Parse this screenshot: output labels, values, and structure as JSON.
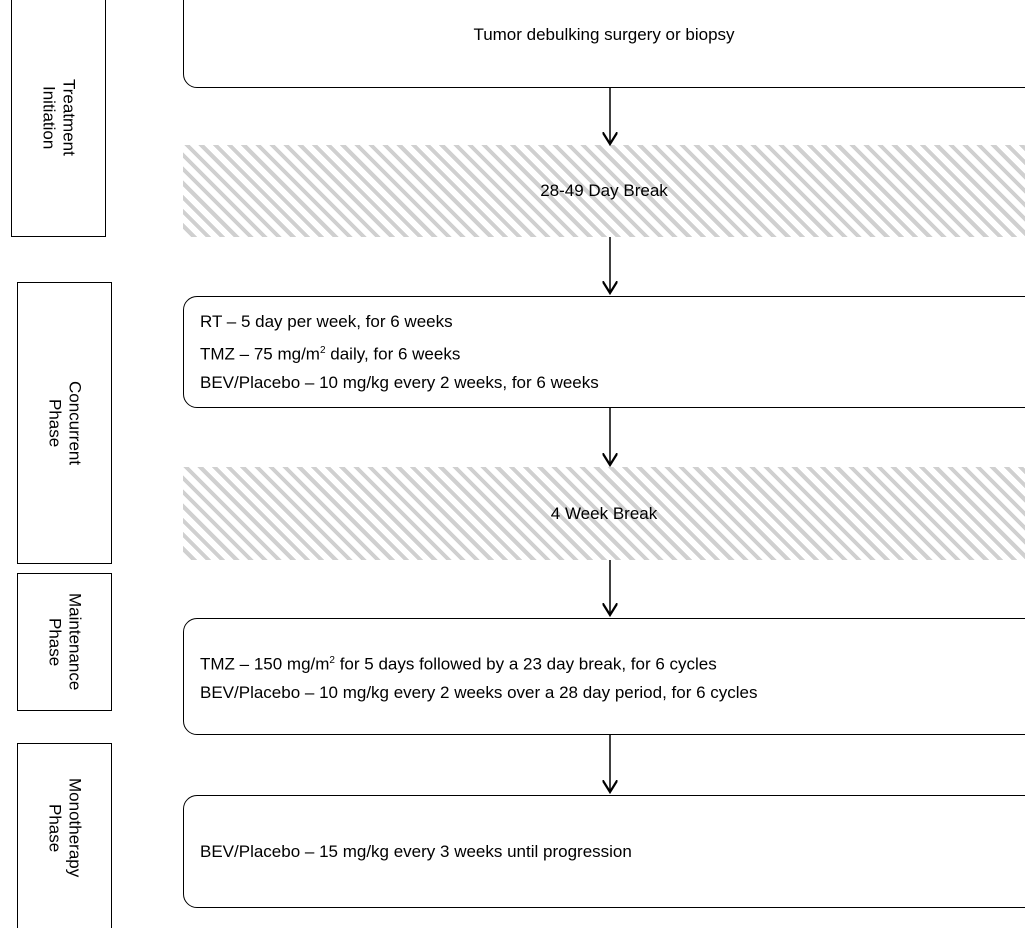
{
  "phases": [
    {
      "lines": [
        "Treatment",
        "Initiation"
      ]
    },
    {
      "lines": [
        "Concurrent",
        "Phase"
      ]
    },
    {
      "lines": [
        "Maintenance",
        "Phase"
      ]
    },
    {
      "lines": [
        "Monotherapy",
        "Phase"
      ]
    }
  ],
  "steps": {
    "surgery": "Tumor debulking surgery or biopsy",
    "break_1": "28-49 Day Break",
    "concurrent": [
      {
        "before": "RT – 5 day per week, for 6 weeks"
      },
      {
        "before": "TMZ – 75 mg/m",
        "sup": "2",
        "after": " daily, for 6 weeks"
      },
      {
        "before": "BEV/Placebo – 10 mg/kg every 2 weeks, for 6 weeks"
      }
    ],
    "break_2": "4 Week Break",
    "maintenance": [
      {
        "before": "TMZ – 150 mg/m",
        "sup": "2",
        "after": " for 5 days followed by a 23 day break, for 6 cycles"
      },
      {
        "before": "BEV/Placebo – 10 mg/kg every 2 weeks over a 28 day period, for 6 cycles"
      }
    ],
    "monotherapy": "BEV/Placebo – 15 mg/kg every 3 weeks until progression"
  }
}
